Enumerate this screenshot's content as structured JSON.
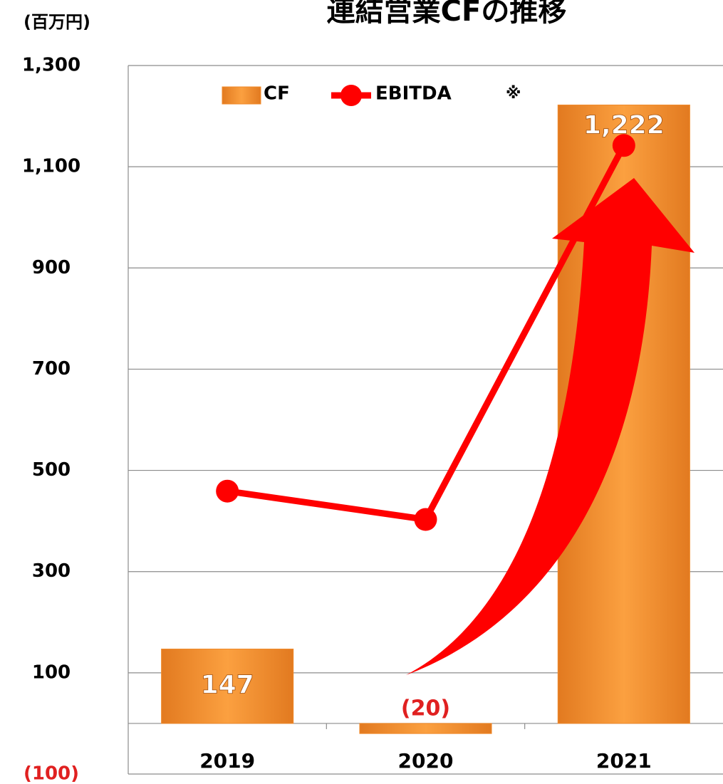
{
  "chart_data": {
    "type": "bar",
    "title": "連結営業CFの推移",
    "unit_label": "(百万円)",
    "annotation": "※",
    "categories": [
      "2019",
      "2020",
      "2021"
    ],
    "series": [
      {
        "name": "CF",
        "type": "bar",
        "color": "#f08a2a",
        "values": [
          147,
          -20,
          1222
        ],
        "value_labels": [
          "147",
          "(20)",
          "1,222"
        ]
      },
      {
        "name": "EBITDA",
        "type": "line",
        "color": "#ff0000",
        "values": [
          459,
          403,
          1142
        ]
      }
    ],
    "ylim": [
      -100,
      1300
    ],
    "yticks": [
      {
        "value": 1300,
        "label": "1,300"
      },
      {
        "value": 1100,
        "label": "1,100"
      },
      900,
      700,
      500,
      300,
      100,
      {
        "value": -100,
        "label": "(100)"
      }
    ],
    "grid": true
  }
}
